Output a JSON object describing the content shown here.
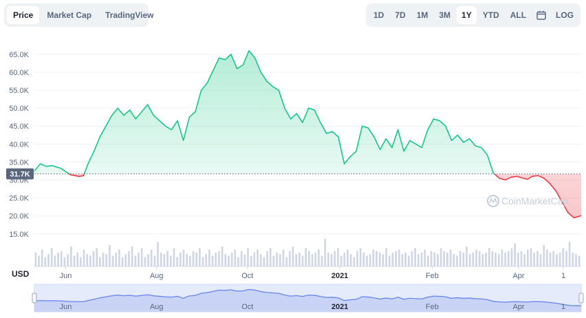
{
  "tabs": [
    {
      "label": "Price",
      "active": true
    },
    {
      "label": "Market Cap",
      "active": false
    },
    {
      "label": "TradingView",
      "active": false
    }
  ],
  "ranges": [
    {
      "label": "1D",
      "active": false
    },
    {
      "label": "7D",
      "active": false
    },
    {
      "label": "1M",
      "active": false
    },
    {
      "label": "3M",
      "active": false
    },
    {
      "label": "1Y",
      "active": true
    },
    {
      "label": "YTD",
      "active": false
    },
    {
      "label": "ALL",
      "active": false
    }
  ],
  "log_label": "LOG",
  "calendar_icon": "calendar-icon",
  "watermark": "CoinMarketCap",
  "currency_label": "USD",
  "colors": {
    "up": "#16c784",
    "down": "#ea3943",
    "navigator": "#6f8ae9",
    "grid": "#eff2f5",
    "axis_text": "#58667e"
  },
  "chart_data": {
    "type": "area",
    "ylim": [
      14000,
      69000
    ],
    "yticks": [
      "15.0K",
      "20.0K",
      "25.0K",
      "30.0K",
      "35.0K",
      "40.0K",
      "45.0K",
      "50.0K",
      "55.0K",
      "60.0K",
      "65.0K"
    ],
    "ytick_values": [
      15000,
      20000,
      25000,
      30000,
      35000,
      40000,
      45000,
      50000,
      55000,
      60000,
      65000
    ],
    "reference_value": 31700,
    "reference_label": "31.7K",
    "x_labels": [
      {
        "label": "Jun",
        "x": 21,
        "bold": false
      },
      {
        "label": "Aug",
        "x": 82,
        "bold": false
      },
      {
        "label": "Oct",
        "x": 143,
        "bold": false
      },
      {
        "label": "2021",
        "x": 205,
        "bold": true
      },
      {
        "label": "Feb",
        "x": 267,
        "bold": false
      },
      {
        "label": "Apr",
        "x": 325,
        "bold": false
      },
      {
        "label": "1",
        "x": 355,
        "bold": false
      }
    ],
    "x_range": [
      0,
      367
    ],
    "series": [
      {
        "x": [
          0,
          4,
          8,
          12,
          18,
          24,
          30,
          33,
          36,
          40,
          44,
          48,
          52,
          56,
          60,
          64,
          68,
          72,
          76,
          80,
          84,
          88,
          92,
          96,
          100,
          104,
          108,
          112,
          116,
          120,
          124,
          128,
          132,
          136,
          140,
          144,
          148,
          152,
          156,
          160,
          164,
          168,
          172,
          176,
          180,
          184,
          188,
          192,
          196,
          200,
          204,
          208,
          212,
          216,
          220,
          224,
          228,
          232,
          236,
          240,
          244,
          248,
          252,
          256,
          260,
          264,
          268,
          272,
          276,
          280,
          284,
          288,
          292,
          296,
          300,
          304,
          308,
          312,
          316,
          320,
          324,
          328,
          331,
          334,
          338,
          342,
          346,
          350,
          354,
          358,
          362,
          365,
          367
        ],
        "values": [
          32500,
          34500,
          33800,
          34000,
          33200,
          31500,
          31000,
          31200,
          34500,
          38000,
          42000,
          45000,
          48000,
          50000,
          48000,
          49500,
          47000,
          49000,
          51000,
          48000,
          46500,
          45000,
          44000,
          46500,
          41000,
          47500,
          49000,
          55000,
          57000,
          60500,
          64000,
          63500,
          65000,
          61000,
          62000,
          66000,
          64000,
          60000,
          57500,
          56000,
          55000,
          50000,
          47000,
          48500,
          46000,
          50000,
          49500,
          46000,
          43000,
          43500,
          42000,
          34500,
          36500,
          38000,
          45000,
          44500,
          42000,
          38500,
          41500,
          39000,
          44000,
          38000,
          41000,
          40000,
          39000,
          44000,
          47000,
          46500,
          45000,
          41000,
          42500,
          40500,
          41500,
          39500,
          39000,
          37000,
          32000,
          30500,
          30000,
          30800,
          31000,
          30500,
          30200,
          31000,
          31200,
          30500,
          29000,
          27000,
          24000,
          21000,
          19500,
          19800,
          20100
        ]
      }
    ],
    "volume": [
      9,
      7,
      11,
      6,
      8,
      12,
      7,
      9,
      10,
      6,
      8,
      13,
      7,
      9,
      6,
      11,
      8,
      7,
      10,
      12,
      6,
      9,
      8,
      14,
      7,
      9,
      11,
      6,
      8,
      10,
      13,
      7,
      9,
      12,
      6,
      8,
      11,
      7,
      16,
      9,
      8,
      10,
      7,
      12,
      6,
      9,
      11,
      8,
      7,
      10,
      9,
      12,
      6,
      8,
      11,
      7,
      9,
      10,
      13,
      8,
      7,
      9,
      11,
      6,
      10,
      8,
      12,
      7,
      9,
      11,
      8,
      6,
      10,
      12,
      7,
      9,
      8,
      11,
      6,
      10,
      13,
      8,
      9,
      7,
      12,
      10,
      8,
      9,
      11,
      7,
      18,
      9,
      8,
      10,
      12,
      7,
      9,
      11,
      8,
      6,
      10,
      12,
      9,
      7,
      8,
      11,
      10,
      9,
      8,
      12,
      7,
      9,
      10,
      11,
      8,
      9,
      7,
      10,
      12,
      8,
      9,
      11,
      7,
      10,
      9,
      8,
      12,
      10,
      9,
      11,
      8,
      7,
      10,
      9,
      13,
      8,
      9,
      11,
      10,
      8,
      9,
      12,
      10,
      9,
      8,
      11,
      9,
      10,
      12,
      15,
      9,
      10,
      8,
      11,
      12,
      9,
      10,
      8,
      14,
      11,
      9,
      10,
      8,
      9,
      12,
      10,
      16,
      9,
      8,
      7
    ]
  }
}
